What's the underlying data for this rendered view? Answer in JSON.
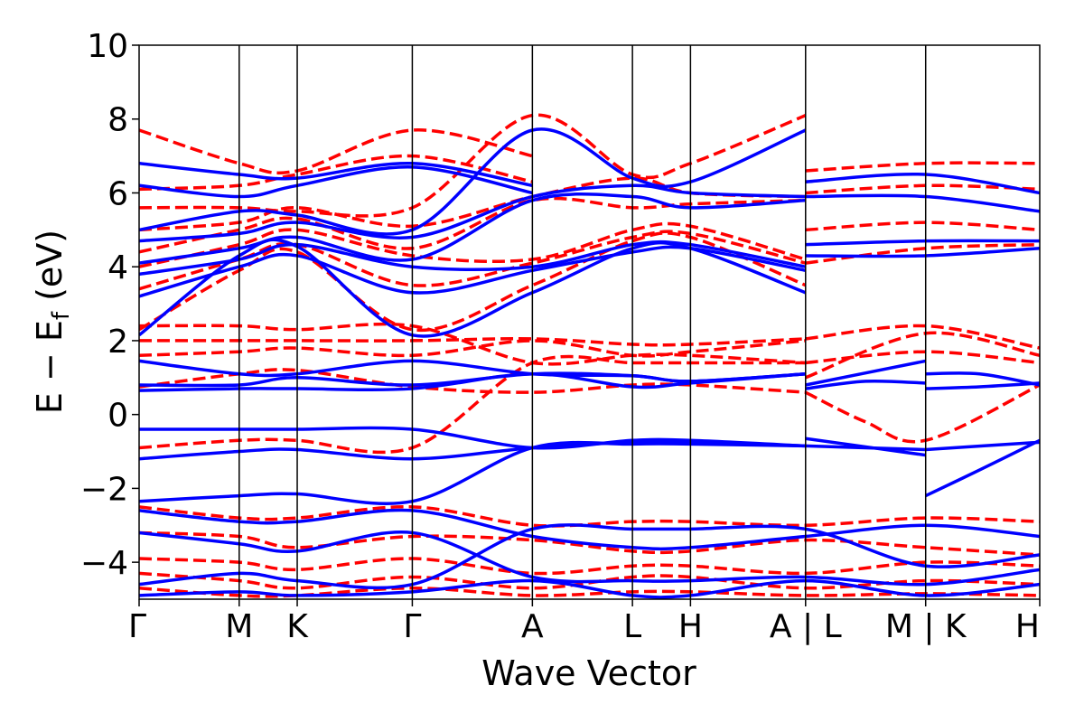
{
  "chart_data": {
    "type": "line",
    "title": "",
    "xlabel": "Wave Vector",
    "ylabel_main": "E − E",
    "ylabel_sub": "f",
    "ylabel_unit": " (eV)",
    "ylim": [
      -5,
      10
    ],
    "yticks": [
      -4,
      -2,
      0,
      2,
      4,
      6,
      8,
      10
    ],
    "ytick_labels": [
      "−4",
      "−2",
      "0",
      "2",
      "4",
      "6",
      "8",
      "10"
    ],
    "xlim": [
      0,
      9.0
    ],
    "kpath_ticks": [
      {
        "label": "Γ",
        "x": 0.0
      },
      {
        "label": "M",
        "x": 1.0
      },
      {
        "label": "K",
        "x": 1.58
      },
      {
        "label": "Γ",
        "x": 2.73
      },
      {
        "label": "A",
        "x": 3.93
      },
      {
        "label": "L",
        "x": 4.93
      },
      {
        "label": "H",
        "x": 5.51
      },
      {
        "label": "A | L",
        "x": 6.66
      },
      {
        "label": "M | K",
        "x": 7.86
      },
      {
        "label": "H",
        "x": 9.0
      }
    ],
    "colors": {
      "blue": "#0000ff",
      "red": "#ff0000"
    },
    "series": [
      {
        "style": "solid",
        "color": "blue",
        "x": [
          0,
          1.0,
          1.58,
          2.73,
          3.93,
          4.93,
          5.51,
          6.66
        ],
        "y": [
          -2.35,
          -2.2,
          -2.15,
          -2.35,
          -0.9,
          -0.8,
          -0.8,
          -0.85
        ]
      },
      {
        "style": "solid",
        "color": "blue",
        "x": [
          0,
          1.0,
          1.58,
          2.73,
          3.93,
          4.93,
          5.51,
          6.66
        ],
        "y": [
          -1.2,
          -1.0,
          -0.95,
          -1.2,
          -0.9,
          -0.75,
          -0.75,
          -0.85
        ]
      },
      {
        "style": "solid",
        "color": "blue",
        "x": [
          0,
          1.0,
          1.58,
          2.73,
          3.93,
          4.93,
          5.51,
          6.66
        ],
        "y": [
          -0.4,
          -0.4,
          -0.4,
          -0.4,
          -0.9,
          -0.7,
          -0.7,
          -0.85
        ]
      },
      {
        "style": "solid",
        "color": "blue",
        "x": [
          0,
          1.0,
          1.58,
          2.73,
          3.93,
          4.93,
          5.51,
          6.66
        ],
        "y": [
          0.65,
          0.7,
          0.7,
          0.7,
          1.1,
          0.75,
          0.85,
          1.1
        ]
      },
      {
        "style": "solid",
        "color": "blue",
        "x": [
          0,
          1.0,
          1.58,
          2.73,
          3.93,
          4.93,
          5.51,
          6.66
        ],
        "y": [
          0.8,
          0.8,
          1.0,
          0.8,
          1.1,
          1.05,
          0.9,
          1.1
        ]
      },
      {
        "style": "solid",
        "color": "blue",
        "x": [
          0,
          1.0,
          1.58,
          2.73,
          3.93,
          4.93,
          5.51,
          6.66
        ],
        "y": [
          1.45,
          1.1,
          1.1,
          1.45,
          1.1,
          1.05,
          0.9,
          1.1
        ]
      },
      {
        "style": "solid",
        "color": "blue",
        "x": [
          6.66,
          7.86
        ],
        "y": [
          0.8,
          1.45
        ]
      },
      {
        "style": "solid",
        "color": "blue",
        "x": [
          6.66,
          7.26,
          7.86
        ],
        "y": [
          0.7,
          0.9,
          0.85
        ]
      },
      {
        "style": "solid",
        "color": "blue",
        "x": [
          6.66,
          7.86
        ],
        "y": [
          -0.65,
          -1.1
        ]
      },
      {
        "style": "solid",
        "color": "blue",
        "x": [
          6.66,
          7.86
        ],
        "y": [
          -0.85,
          -0.95
        ]
      },
      {
        "style": "solid",
        "color": "blue",
        "x": [
          7.86,
          8.4,
          9.0
        ],
        "y": [
          -2.2,
          -1.5,
          -0.7
        ]
      },
      {
        "style": "solid",
        "color": "blue",
        "x": [
          7.86,
          9.0
        ],
        "y": [
          -0.95,
          -0.75
        ]
      },
      {
        "style": "solid",
        "color": "blue",
        "x": [
          7.86,
          8.4,
          9.0
        ],
        "y": [
          0.7,
          0.75,
          0.85
        ]
      },
      {
        "style": "solid",
        "color": "blue",
        "x": [
          7.86,
          8.4,
          9.0
        ],
        "y": [
          1.1,
          1.1,
          0.8
        ]
      },
      {
        "style": "solid",
        "color": "blue",
        "x": [
          0,
          1.0,
          1.58,
          2.73,
          3.93,
          4.93,
          5.51,
          6.66
        ],
        "y": [
          2.15,
          4.3,
          4.55,
          2.15,
          3.3,
          4.5,
          4.5,
          3.3
        ]
      },
      {
        "style": "solid",
        "color": "blue",
        "x": [
          0,
          1.0,
          1.58,
          2.73,
          3.93,
          4.93,
          5.51,
          6.66
        ],
        "y": [
          3.2,
          4.0,
          4.3,
          3.3,
          3.9,
          4.4,
          4.5,
          3.9
        ]
      },
      {
        "style": "solid",
        "color": "blue",
        "x": [
          0,
          1.0,
          1.58,
          2.73,
          3.93,
          4.93,
          5.51,
          6.66
        ],
        "y": [
          3.8,
          4.2,
          4.6,
          4.0,
          4.0,
          4.6,
          4.6,
          4.0
        ]
      },
      {
        "style": "solid",
        "color": "blue",
        "x": [
          0,
          1.0,
          1.58,
          2.73,
          3.93,
          4.93,
          5.51,
          6.66
        ],
        "y": [
          4.1,
          4.5,
          4.8,
          4.2,
          5.8,
          5.9,
          5.6,
          5.8
        ]
      },
      {
        "style": "solid",
        "color": "blue",
        "x": [
          0,
          1.0,
          1.58,
          2.73,
          3.93,
          4.93,
          5.51,
          6.66
        ],
        "y": [
          4.7,
          4.9,
          5.2,
          4.8,
          5.9,
          6.2,
          6.0,
          5.9
        ]
      },
      {
        "style": "solid",
        "color": "blue",
        "x": [
          0,
          1.0,
          1.58,
          2.73,
          3.93,
          4.93,
          5.51,
          6.66
        ],
        "y": [
          5.0,
          5.5,
          5.4,
          5.0,
          7.7,
          6.4,
          6.3,
          7.7
        ]
      },
      {
        "style": "solid",
        "color": "blue",
        "x": [
          0,
          1.0,
          1.58,
          2.73,
          3.93
        ],
        "y": [
          6.2,
          5.9,
          6.2,
          6.7,
          6.0
        ]
      },
      {
        "style": "solid",
        "color": "blue",
        "x": [
          0,
          1.0,
          1.58,
          2.73,
          3.93
        ],
        "y": [
          6.8,
          6.5,
          6.4,
          6.8,
          6.2
        ]
      },
      {
        "style": "solid",
        "color": "blue",
        "x": [
          6.66,
          7.86,
          9.0
        ],
        "y": [
          4.3,
          4.3,
          4.5
        ]
      },
      {
        "style": "solid",
        "color": "blue",
        "x": [
          6.66,
          7.86,
          9.0
        ],
        "y": [
          4.6,
          4.7,
          4.7
        ]
      },
      {
        "style": "solid",
        "color": "blue",
        "x": [
          6.66,
          7.86,
          9.0
        ],
        "y": [
          5.9,
          5.9,
          5.5
        ]
      },
      {
        "style": "solid",
        "color": "blue",
        "x": [
          6.66,
          7.86,
          9.0
        ],
        "y": [
          6.3,
          6.5,
          6.0
        ]
      },
      {
        "style": "solid",
        "color": "blue",
        "x": [
          0,
          1.0,
          1.58,
          2.73,
          3.93,
          4.93,
          5.51,
          6.66,
          7.86,
          9.0
        ],
        "y": [
          -3.2,
          -3.5,
          -3.7,
          -3.2,
          -4.4,
          -4.5,
          -4.5,
          -4.4,
          -4.6,
          -4.2
        ]
      },
      {
        "style": "solid",
        "color": "blue",
        "x": [
          0,
          1.0,
          1.58,
          2.73,
          3.93,
          4.93,
          5.51,
          6.66,
          7.86,
          9.0
        ],
        "y": [
          -2.6,
          -2.9,
          -2.9,
          -2.6,
          -3.3,
          -3.6,
          -3.6,
          -3.3,
          -3.0,
          -3.3
        ]
      },
      {
        "style": "solid",
        "color": "blue",
        "x": [
          0,
          1.0,
          1.58,
          2.73,
          3.93,
          4.93,
          5.51,
          6.66,
          7.86,
          9.0
        ],
        "y": [
          -4.6,
          -4.3,
          -4.5,
          -4.6,
          -3.1,
          -3.1,
          -3.1,
          -3.1,
          -4.1,
          -3.8
        ]
      },
      {
        "style": "solid",
        "color": "blue",
        "x": [
          0,
          1.0,
          1.58,
          2.73,
          3.93,
          4.93,
          5.51,
          6.66,
          7.86,
          9.0
        ],
        "y": [
          -4.9,
          -4.8,
          -4.9,
          -4.8,
          -4.5,
          -4.9,
          -4.9,
          -4.5,
          -4.9,
          -4.6
        ]
      },
      {
        "style": "dashed",
        "color": "red",
        "x": [
          0,
          1.0,
          1.58,
          2.73,
          3.93,
          4.93,
          5.51,
          6.66
        ],
        "y": [
          -0.9,
          -0.7,
          -0.7,
          -0.9,
          1.4,
          1.4,
          1.4,
          1.4
        ]
      },
      {
        "style": "dashed",
        "color": "red",
        "x": [
          0,
          1.0,
          1.58,
          2.73,
          3.93,
          4.93,
          5.51,
          6.66
        ],
        "y": [
          0.75,
          1.1,
          1.2,
          0.75,
          0.6,
          0.8,
          0.8,
          0.6
        ]
      },
      {
        "style": "dashed",
        "color": "red",
        "x": [
          0,
          1.0,
          1.58,
          2.73,
          3.93,
          4.93,
          5.51,
          6.66
        ],
        "y": [
          1.6,
          1.7,
          1.8,
          1.6,
          2.0,
          1.6,
          1.7,
          2.0
        ]
      },
      {
        "style": "dashed",
        "color": "red",
        "x": [
          0,
          1.0,
          1.58,
          2.73,
          3.93,
          4.93,
          5.51,
          6.66
        ],
        "y": [
          2.0,
          2.0,
          2.0,
          2.0,
          2.05,
          1.9,
          1.9,
          2.05
        ]
      },
      {
        "style": "dashed",
        "color": "red",
        "x": [
          0,
          1.0,
          1.58,
          2.73,
          3.93,
          4.93,
          5.51,
          6.66
        ],
        "y": [
          2.4,
          2.4,
          2.3,
          2.4,
          1.4,
          1.6,
          1.6,
          1.4
        ]
      },
      {
        "style": "dashed",
        "color": "red",
        "x": [
          6.66,
          7.26,
          7.86,
          9.0
        ],
        "y": [
          0.6,
          -0.2,
          -0.7,
          0.8
        ]
      },
      {
        "style": "dashed",
        "color": "red",
        "x": [
          6.66,
          7.86,
          9.0
        ],
        "y": [
          1.4,
          1.7,
          1.4
        ]
      },
      {
        "style": "dashed",
        "color": "red",
        "x": [
          6.66,
          7.86,
          9.0
        ],
        "y": [
          2.05,
          2.4,
          1.8
        ]
      },
      {
        "style": "dashed",
        "color": "red",
        "x": [
          6.66,
          7.86,
          9.0
        ],
        "y": [
          1.0,
          2.2,
          1.6
        ]
      },
      {
        "style": "dashed",
        "color": "red",
        "x": [
          0,
          1.0,
          1.58,
          2.73,
          3.93,
          4.93,
          5.51,
          6.66
        ],
        "y": [
          2.3,
          3.9,
          4.4,
          2.3,
          3.5,
          4.7,
          4.8,
          3.5
        ]
      },
      {
        "style": "dashed",
        "color": "red",
        "x": [
          0,
          1.0,
          1.58,
          2.73,
          3.93,
          4.93,
          5.51,
          6.66
        ],
        "y": [
          3.4,
          4.2,
          4.6,
          3.5,
          4.1,
          4.8,
          4.9,
          4.1
        ]
      },
      {
        "style": "dashed",
        "color": "red",
        "x": [
          0,
          1.0,
          1.58,
          2.73,
          3.93,
          4.93,
          5.51,
          6.66
        ],
        "y": [
          4.0,
          4.6,
          5.0,
          4.3,
          4.2,
          5.0,
          5.1,
          4.2
        ]
      },
      {
        "style": "dashed",
        "color": "red",
        "x": [
          0,
          1.0,
          1.58,
          2.73,
          3.93,
          4.93,
          5.51,
          6.66
        ],
        "y": [
          4.4,
          5.0,
          5.3,
          4.5,
          5.8,
          5.6,
          5.7,
          5.8
        ]
      },
      {
        "style": "dashed",
        "color": "red",
        "x": [
          0,
          1.0,
          1.58,
          2.73,
          3.93,
          4.93,
          5.51,
          6.66
        ],
        "y": [
          5.0,
          5.2,
          5.6,
          5.1,
          5.9,
          6.4,
          6.0,
          5.9
        ]
      },
      {
        "style": "dashed",
        "color": "red",
        "x": [
          0,
          1.0,
          1.58,
          2.73,
          3.93,
          4.93,
          5.51,
          6.66
        ],
        "y": [
          5.6,
          5.6,
          5.5,
          5.6,
          8.1,
          6.5,
          6.8,
          8.1
        ]
      },
      {
        "style": "dashed",
        "color": "red",
        "x": [
          0,
          1.0,
          1.58,
          2.73,
          3.93
        ],
        "y": [
          6.1,
          6.2,
          6.5,
          7.0,
          6.3
        ]
      },
      {
        "style": "dashed",
        "color": "red",
        "x": [
          0,
          1.0,
          1.58,
          2.73,
          3.93
        ],
        "y": [
          7.7,
          6.8,
          6.6,
          7.7,
          7.0
        ]
      },
      {
        "style": "dashed",
        "color": "red",
        "x": [
          6.66,
          7.86,
          9.0
        ],
        "y": [
          4.1,
          4.5,
          4.6
        ]
      },
      {
        "style": "dashed",
        "color": "red",
        "x": [
          6.66,
          7.86,
          9.0
        ],
        "y": [
          5.0,
          5.2,
          5.0
        ]
      },
      {
        "style": "dashed",
        "color": "red",
        "x": [
          6.66,
          7.86,
          9.0
        ],
        "y": [
          6.0,
          6.2,
          6.1
        ]
      },
      {
        "style": "dashed",
        "color": "red",
        "x": [
          6.66,
          7.86,
          9.0
        ],
        "y": [
          6.6,
          6.8,
          6.8
        ]
      },
      {
        "style": "dashed",
        "color": "red",
        "x": [
          0,
          1.0,
          1.58,
          2.73,
          3.93,
          4.93,
          5.51,
          6.66,
          7.86,
          9.0
        ],
        "y": [
          -2.5,
          -2.8,
          -2.8,
          -2.5,
          -3.0,
          -2.9,
          -2.9,
          -3.0,
          -2.8,
          -2.9
        ]
      },
      {
        "style": "dashed",
        "color": "red",
        "x": [
          0,
          1.0,
          1.58,
          2.73,
          3.93,
          4.93,
          5.51,
          6.66,
          7.86,
          9.0
        ],
        "y": [
          -3.2,
          -3.3,
          -3.6,
          -3.3,
          -3.4,
          -3.7,
          -3.7,
          -3.4,
          -3.6,
          -3.8
        ]
      },
      {
        "style": "dashed",
        "color": "red",
        "x": [
          0,
          1.0,
          1.58,
          2.73,
          3.93,
          4.93,
          5.51,
          6.66,
          7.86,
          9.0
        ],
        "y": [
          -3.9,
          -4.0,
          -4.2,
          -3.9,
          -4.3,
          -4.1,
          -4.1,
          -4.3,
          -4.0,
          -4.1
        ]
      },
      {
        "style": "dashed",
        "color": "red",
        "x": [
          0,
          1.0,
          1.58,
          2.73,
          3.93,
          4.93,
          5.51,
          6.66,
          7.86,
          9.0
        ],
        "y": [
          -4.3,
          -4.5,
          -4.7,
          -4.4,
          -4.7,
          -4.4,
          -4.4,
          -4.7,
          -4.5,
          -4.6
        ]
      },
      {
        "style": "dashed",
        "color": "red",
        "x": [
          0,
          1.0,
          1.58,
          2.73,
          3.93,
          4.93,
          5.51,
          6.66,
          7.86,
          9.0
        ],
        "y": [
          -4.7,
          -4.9,
          -4.9,
          -4.7,
          -4.9,
          -4.8,
          -4.8,
          -4.9,
          -4.85,
          -4.9
        ]
      }
    ]
  }
}
